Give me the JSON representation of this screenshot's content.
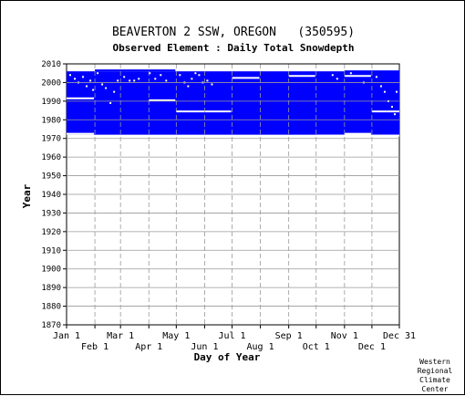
{
  "chart_data": {
    "type": "heatmap",
    "title": "BEAVERTON 2 SSW, OREGON   (350595)",
    "subtitle": "Observed Element : Daily Total Snowdepth",
    "xlabel": "Day of Year",
    "ylabel": "Year",
    "xlim": [
      1,
      365
    ],
    "ylim": [
      1870,
      2010
    ],
    "y_ticks": [
      2010,
      2000,
      1990,
      1980,
      1970,
      1960,
      1950,
      1940,
      1930,
      1920,
      1910,
      1900,
      1890,
      1880,
      1870
    ],
    "x_ticks_top_row": [
      {
        "label": "Jan 1",
        "day": 1
      },
      {
        "label": "Mar 1",
        "day": 60
      },
      {
        "label": "May 1",
        "day": 121
      },
      {
        "label": "Jul 1",
        "day": 182
      },
      {
        "label": "Sep 1",
        "day": 244
      },
      {
        "label": "Nov 1",
        "day": 305
      },
      {
        "label": "Dec 31",
        "day": 365
      }
    ],
    "x_ticks_bottom_row": [
      {
        "label": "Feb 1",
        "day": 32
      },
      {
        "label": "Apr 1",
        "day": 91
      },
      {
        "label": "Jun 1",
        "day": 152
      },
      {
        "label": "Aug 1",
        "day": 213
      },
      {
        "label": "Oct 1",
        "day": 274
      },
      {
        "label": "Dec 1",
        "day": 335
      }
    ],
    "grid": true,
    "data_present_color": "#0000ff",
    "missing_color": "#ffffff",
    "data_coverage": {
      "year_start": 1972,
      "year_end": 2006,
      "early_record_start_day": 32,
      "early_record_start_year": 2007,
      "late_record_end_year": 2005,
      "late_record_end_from_day": 305
    },
    "missing_segments": [
      {
        "year": 1972.5,
        "day_start": 1,
        "day_end": 31
      },
      {
        "year": 1991.5,
        "day_start": 1,
        "day_end": 31
      },
      {
        "year": 1990.5,
        "day_start": 91,
        "day_end": 120
      },
      {
        "year": 1984.5,
        "day_start": 121,
        "day_end": 181
      },
      {
        "year": 2002.5,
        "day_start": 182,
        "day_end": 212
      },
      {
        "year": 2003.5,
        "day_start": 244,
        "day_end": 273
      },
      {
        "year": 2003.5,
        "day_start": 305,
        "day_end": 334
      },
      {
        "year": 1972.5,
        "day_start": 305,
        "day_end": 334
      },
      {
        "year": 1984.5,
        "day_start": 335,
        "day_end": 365
      },
      {
        "year": 1971.5,
        "day_start": 274,
        "day_end": 365
      }
    ],
    "missing_days": [
      {
        "year": 2004,
        "day": 5
      },
      {
        "year": 2002,
        "day": 10
      },
      {
        "year": 2000,
        "day": 14
      },
      {
        "year": 2003,
        "day": 19
      },
      {
        "year": 1998,
        "day": 23
      },
      {
        "year": 2001,
        "day": 27
      },
      {
        "year": 1996,
        "day": 30
      },
      {
        "year": 2005,
        "day": 35
      },
      {
        "year": 1999,
        "day": 40
      },
      {
        "year": 1997,
        "day": 44
      },
      {
        "year": 1989,
        "day": 49
      },
      {
        "year": 1995,
        "day": 53
      },
      {
        "year": 2001,
        "day": 57
      },
      {
        "year": 2003,
        "day": 64
      },
      {
        "year": 2001,
        "day": 70
      },
      {
        "year": 2001,
        "day": 75
      },
      {
        "year": 2002,
        "day": 80
      },
      {
        "year": 2005,
        "day": 92
      },
      {
        "year": 2002,
        "day": 98
      },
      {
        "year": 2004,
        "day": 104
      },
      {
        "year": 2001,
        "day": 110
      },
      {
        "year": 2004,
        "day": 125
      },
      {
        "year": 2000,
        "day": 130
      },
      {
        "year": 1998,
        "day": 134
      },
      {
        "year": 2002,
        "day": 138
      },
      {
        "year": 2005,
        "day": 142
      },
      {
        "year": 2004,
        "day": 146
      },
      {
        "year": 2000,
        "day": 150
      },
      {
        "year": 2001,
        "day": 155
      },
      {
        "year": 1999,
        "day": 160
      },
      {
        "year": 2004,
        "day": 292
      },
      {
        "year": 2002,
        "day": 297
      },
      {
        "year": 2005,
        "day": 312
      },
      {
        "year": 2000,
        "day": 326
      },
      {
        "year": 2003,
        "day": 340
      },
      {
        "year": 1998,
        "day": 345
      },
      {
        "year": 1995,
        "day": 349
      },
      {
        "year": 1990,
        "day": 353
      },
      {
        "year": 1987,
        "day": 357
      },
      {
        "year": 1983,
        "day": 360
      },
      {
        "year": 1995,
        "day": 362
      }
    ]
  },
  "footer": {
    "credit_lines": [
      "Western",
      "Regional",
      "Climate",
      "Center"
    ]
  }
}
